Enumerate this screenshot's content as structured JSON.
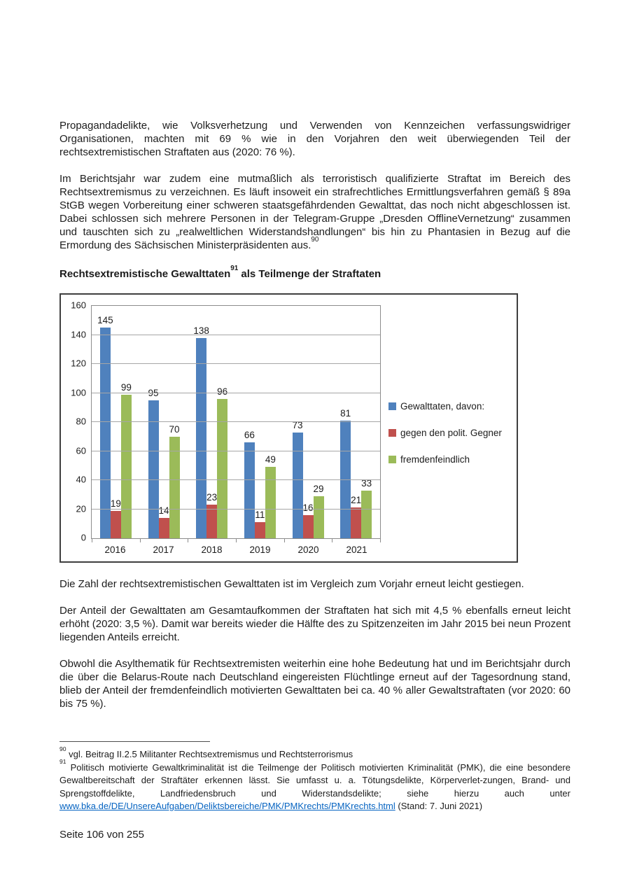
{
  "document": {
    "p1": "Propagandadelikte, wie Volksverhetzung und Verwenden von Kennzeichen verfassungswidriger Organisationen, machten mit 69 % wie in den Vorjahren den weit überwiegenden Teil der rechtsextremistischen Straftaten aus (2020: 76 %).",
    "p2": {
      "text": "Im Berichtsjahr war zudem eine mutmaßlich als terroristisch qualifizierte Straftat im Bereich des Rechtsextremismus zu verzeichnen. Es läuft insoweit ein strafrechtliches Ermittlungsverfahren gemäß § 89a StGB wegen Vorbereitung einer schweren staatsgefährdenden Gewalttat, das noch nicht abgeschlossen ist. Dabei schlossen sich mehrere Personen in der Telegram-Gruppe „Dresden OfflineVernetzung“ zusammen und tauschten sich zu „realweltlichen Widerstandshandlungen“ bis hin zu Phantasien in Bezug auf die Ermordung des Sächsischen Ministerpräsidenten aus.",
      "sup": "90"
    },
    "heading": {
      "text_before": "Rechtsextremistische Gewalttaten",
      "sup": "91",
      "text_after": " als Teilmenge der Straftaten"
    },
    "p3": "Die Zahl der rechtsextremistischen Gewalttaten ist im Vergleich zum Vorjahr erneut leicht gestiegen.",
    "p4": "Der Anteil der Gewalttaten am Gesamtaufkommen der Straftaten hat sich mit 4,5 % ebenfalls erneut leicht erhöht (2020: 3,5 %). Damit war bereits wieder die Hälfte des zu Spitzenzeiten im Jahr 2015 bei neun Prozent liegenden Anteils erreicht.",
    "p5": "Obwohl die Asylthematik für Rechtsextremisten weiterhin eine hohe Bedeutung hat und im Berichtsjahr durch die über die Belarus-Route nach Deutschland eingereisten Flüchtlinge erneut auf der Tagesordnung stand, blieb der Anteil der fremdenfeindlich motivierten Gewalttaten bei ca. 40 % aller Gewaltstraftaten (vor 2020: 60 bis 75 %).",
    "footnotes": {
      "fn90": {
        "marker": "90",
        "text": " vgl. Beitrag II.2.5 Militanter Rechtsextremismus und Rechtsterrorismus"
      },
      "fn91": {
        "marker": "91",
        "text_before": " Politisch motivierte Gewaltkriminalität ist die Teilmenge der Politisch motivierten Kriminalität (PMK), die eine besondere Gewaltbereitschaft der Straftäter erkennen lässt. Sie umfasst u. a. Tötungsdelikte, Körperverlet-zungen, Brand- und Sprengstoffdelikte, Landfriedensbruch und Widerstandsdelikte; siehe hierzu auch unter ",
        "link_text": "www.bka.de/DE/UnsereAufgaben/Deliktsbereiche/PMK/PMKrechts/PMKrechts.html",
        "text_after": " (Stand: 7. Juni 2021)"
      }
    },
    "footer": "Seite 106 von 255"
  },
  "chart_data": {
    "type": "bar",
    "title": "Rechtsextremistische Gewalttaten als Teilmenge der Straftaten",
    "categories": [
      "2016",
      "2017",
      "2018",
      "2019",
      "2020",
      "2021"
    ],
    "series": [
      {
        "name": "Gewalttaten, davon:",
        "color": "#4f81bd",
        "values": [
          145,
          95,
          138,
          66,
          73,
          81
        ]
      },
      {
        "name": "gegen den polit. Gegner",
        "color": "#c0504d",
        "values": [
          19,
          14,
          23,
          11,
          16,
          21
        ]
      },
      {
        "name": "fremdenfeindlich",
        "color": "#9bbb59",
        "values": [
          99,
          70,
          96,
          49,
          29,
          33
        ]
      }
    ],
    "xlabel": "",
    "ylabel": "",
    "ylim": [
      0,
      160
    ],
    "ytick_step": 20,
    "grid": true,
    "legend_position": "right",
    "data_labels": true
  }
}
